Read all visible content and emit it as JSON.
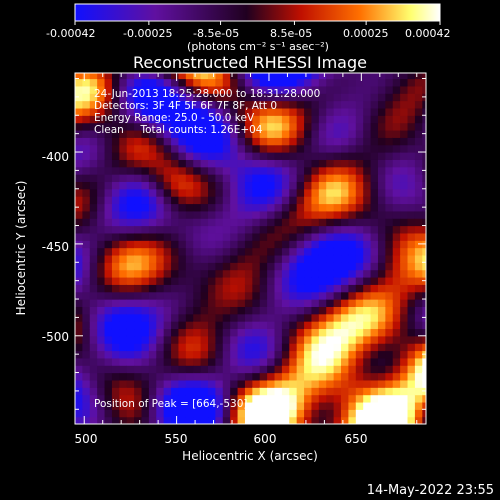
{
  "chart_data": {
    "type": "heatmap",
    "title": "Reconstructed RHESSI Image",
    "xlabel": "Heliocentric X (arcsec)",
    "ylabel": "Heliocentric Y (arcsec)",
    "xlim": [
      495,
      685
    ],
    "ylim": [
      -548,
      -357
    ],
    "xticks": [
      500,
      550,
      600,
      650
    ],
    "yticks": [
      -400,
      -450,
      -500
    ],
    "colorbar": {
      "ticks": [
        "-0.00042",
        "-0.00025",
        "-8.5e-05",
        "8.5e-05",
        "0.00025",
        "0.00042"
      ],
      "range": [
        -0.00042,
        0.00042
      ],
      "unit": "(photons cm⁻² s⁻¹ asec⁻²)",
      "colors": [
        "#1010ff",
        "#6010a0",
        "#200020",
        "#c01000",
        "#ff7000",
        "#ffff70",
        "#ffffff"
      ]
    },
    "annotations": [
      "24-Jun-2013 18:25:28.000 to 18:31:28.000",
      "Detectors: 3F 4F 5F 6F 7F 8F, Att 0",
      "Energy Range: 25.0 - 50.0 keV",
      "Clean     Total counts: 1.26E+04"
    ],
    "peak_text": "Position of Peak = [664,-530]",
    "peak": [
      664,
      -530
    ]
  },
  "footer": {
    "date": "14-May-2022 23:55"
  }
}
